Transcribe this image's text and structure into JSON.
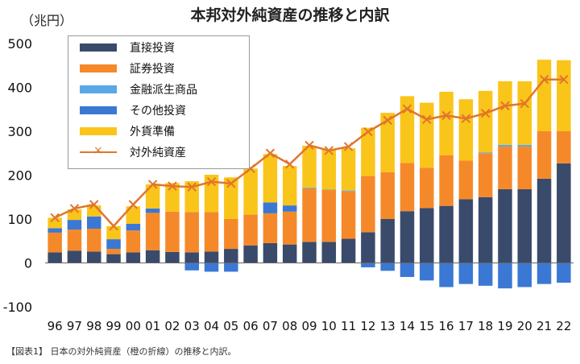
{
  "chart_data": {
    "type": "bar",
    "title": "本邦対外純資産の推移と内訳",
    "ylabel": "（兆円）",
    "ylim": [
      -100,
      500
    ],
    "yticks": [
      500,
      400,
      300,
      200,
      100,
      0,
      -100
    ],
    "categories": [
      "96",
      "97",
      "98",
      "99",
      "00",
      "01",
      "02",
      "03",
      "04",
      "05",
      "06",
      "07",
      "08",
      "09",
      "10",
      "11",
      "12",
      "13",
      "14",
      "15",
      "16",
      "17",
      "18",
      "19",
      "20",
      "21",
      "22"
    ],
    "series": [
      {
        "name": "直接投資",
        "kind": "bar",
        "color": "#3a4a6b",
        "values": [
          24,
          28,
          26,
          20,
          24,
          29,
          25,
          24,
          26,
          32,
          40,
          45,
          42,
          48,
          48,
          55,
          70,
          100,
          118,
          125,
          130,
          145,
          150,
          168,
          168,
          192,
          227
        ]
      },
      {
        "name": "証券投資",
        "kind": "bar",
        "color": "#f5892a",
        "values": [
          45,
          48,
          52,
          12,
          50,
          85,
          92,
          92,
          90,
          68,
          70,
          68,
          75,
          122,
          118,
          108,
          128,
          107,
          110,
          92,
          115,
          88,
          100,
          97,
          97,
          108,
          73
        ]
      },
      {
        "name": "金融派生商品",
        "kind": "bar",
        "color": "#5aa9e6",
        "values": [
          0,
          0,
          0,
          0,
          0,
          0,
          0,
          0,
          0,
          0,
          0,
          0,
          0,
          2,
          1,
          2,
          0,
          0,
          0,
          0,
          0,
          0,
          2,
          4,
          4,
          0,
          0
        ]
      },
      {
        "name": "その他投資",
        "kind": "bar",
        "color": "#3a78d4",
        "values": [
          10,
          22,
          28,
          22,
          15,
          10,
          0,
          -17,
          -20,
          -20,
          0,
          25,
          14,
          0,
          0,
          0,
          -10,
          -18,
          -32,
          -40,
          -55,
          -48,
          -52,
          -58,
          -55,
          -48,
          -45
        ]
      },
      {
        "name": "外貨準備",
        "kind": "bar",
        "color": "#fac51a",
        "values": [
          24,
          24,
          25,
          30,
          40,
          55,
          65,
          70,
          85,
          95,
          105,
          110,
          90,
          95,
          92,
          96,
          110,
          135,
          152,
          148,
          145,
          140,
          140,
          145,
          145,
          163,
          162
        ]
      },
      {
        "name": "対外純資産",
        "kind": "line",
        "color": "#e0762d",
        "marker": "×",
        "values": [
          103,
          124,
          133,
          84,
          133,
          179,
          175,
          173,
          185,
          181,
          215,
          250,
          225,
          268,
          256,
          265,
          299,
          325,
          351,
          327,
          336,
          329,
          341,
          358,
          363,
          418,
          418
        ]
      }
    ],
    "grid": false,
    "legend_position": "top-left",
    "caption": "【図表1】 日本の対外純資産（橙の折線）の推移と内訳。"
  }
}
